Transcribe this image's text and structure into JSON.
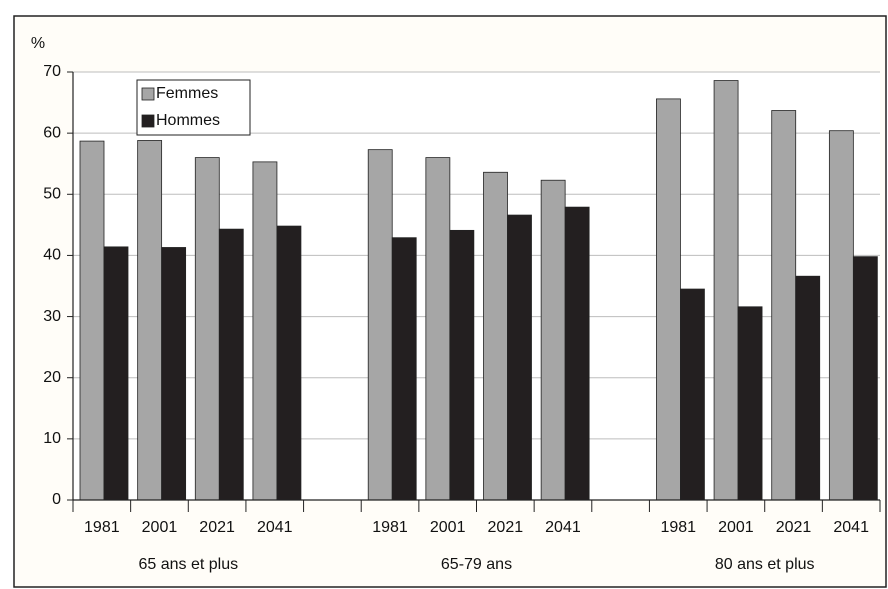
{
  "chart_data": {
    "type": "bar",
    "y_label": "%",
    "categories": [
      "1981",
      "2001",
      "2021",
      "2041",
      null,
      "1981",
      "2001",
      "2021",
      "2041",
      null,
      "1981",
      "2001",
      "2021",
      "2041"
    ],
    "groups": [
      "65 ans et plus",
      "65-79 ans",
      "80 ans et plus"
    ],
    "series": [
      {
        "name": "Femmes",
        "color": "#a6a6a6",
        "values": [
          58.7,
          58.8,
          56,
          55.3,
          null,
          57.3,
          56,
          53.6,
          52.3,
          null,
          65.6,
          68.6,
          63.7,
          60.4
        ]
      },
      {
        "name": "Hommes",
        "color": "#231f20",
        "values": [
          41.4,
          41.3,
          44.3,
          44.8,
          null,
          42.9,
          44.1,
          46.6,
          47.9,
          null,
          34.5,
          31.6,
          36.6,
          39.8
        ]
      }
    ],
    "ylim": [
      0,
      70
    ],
    "yticks": [
      0,
      10,
      20,
      30,
      40,
      50,
      60,
      70
    ],
    "grid": true,
    "legend": "top-left"
  }
}
